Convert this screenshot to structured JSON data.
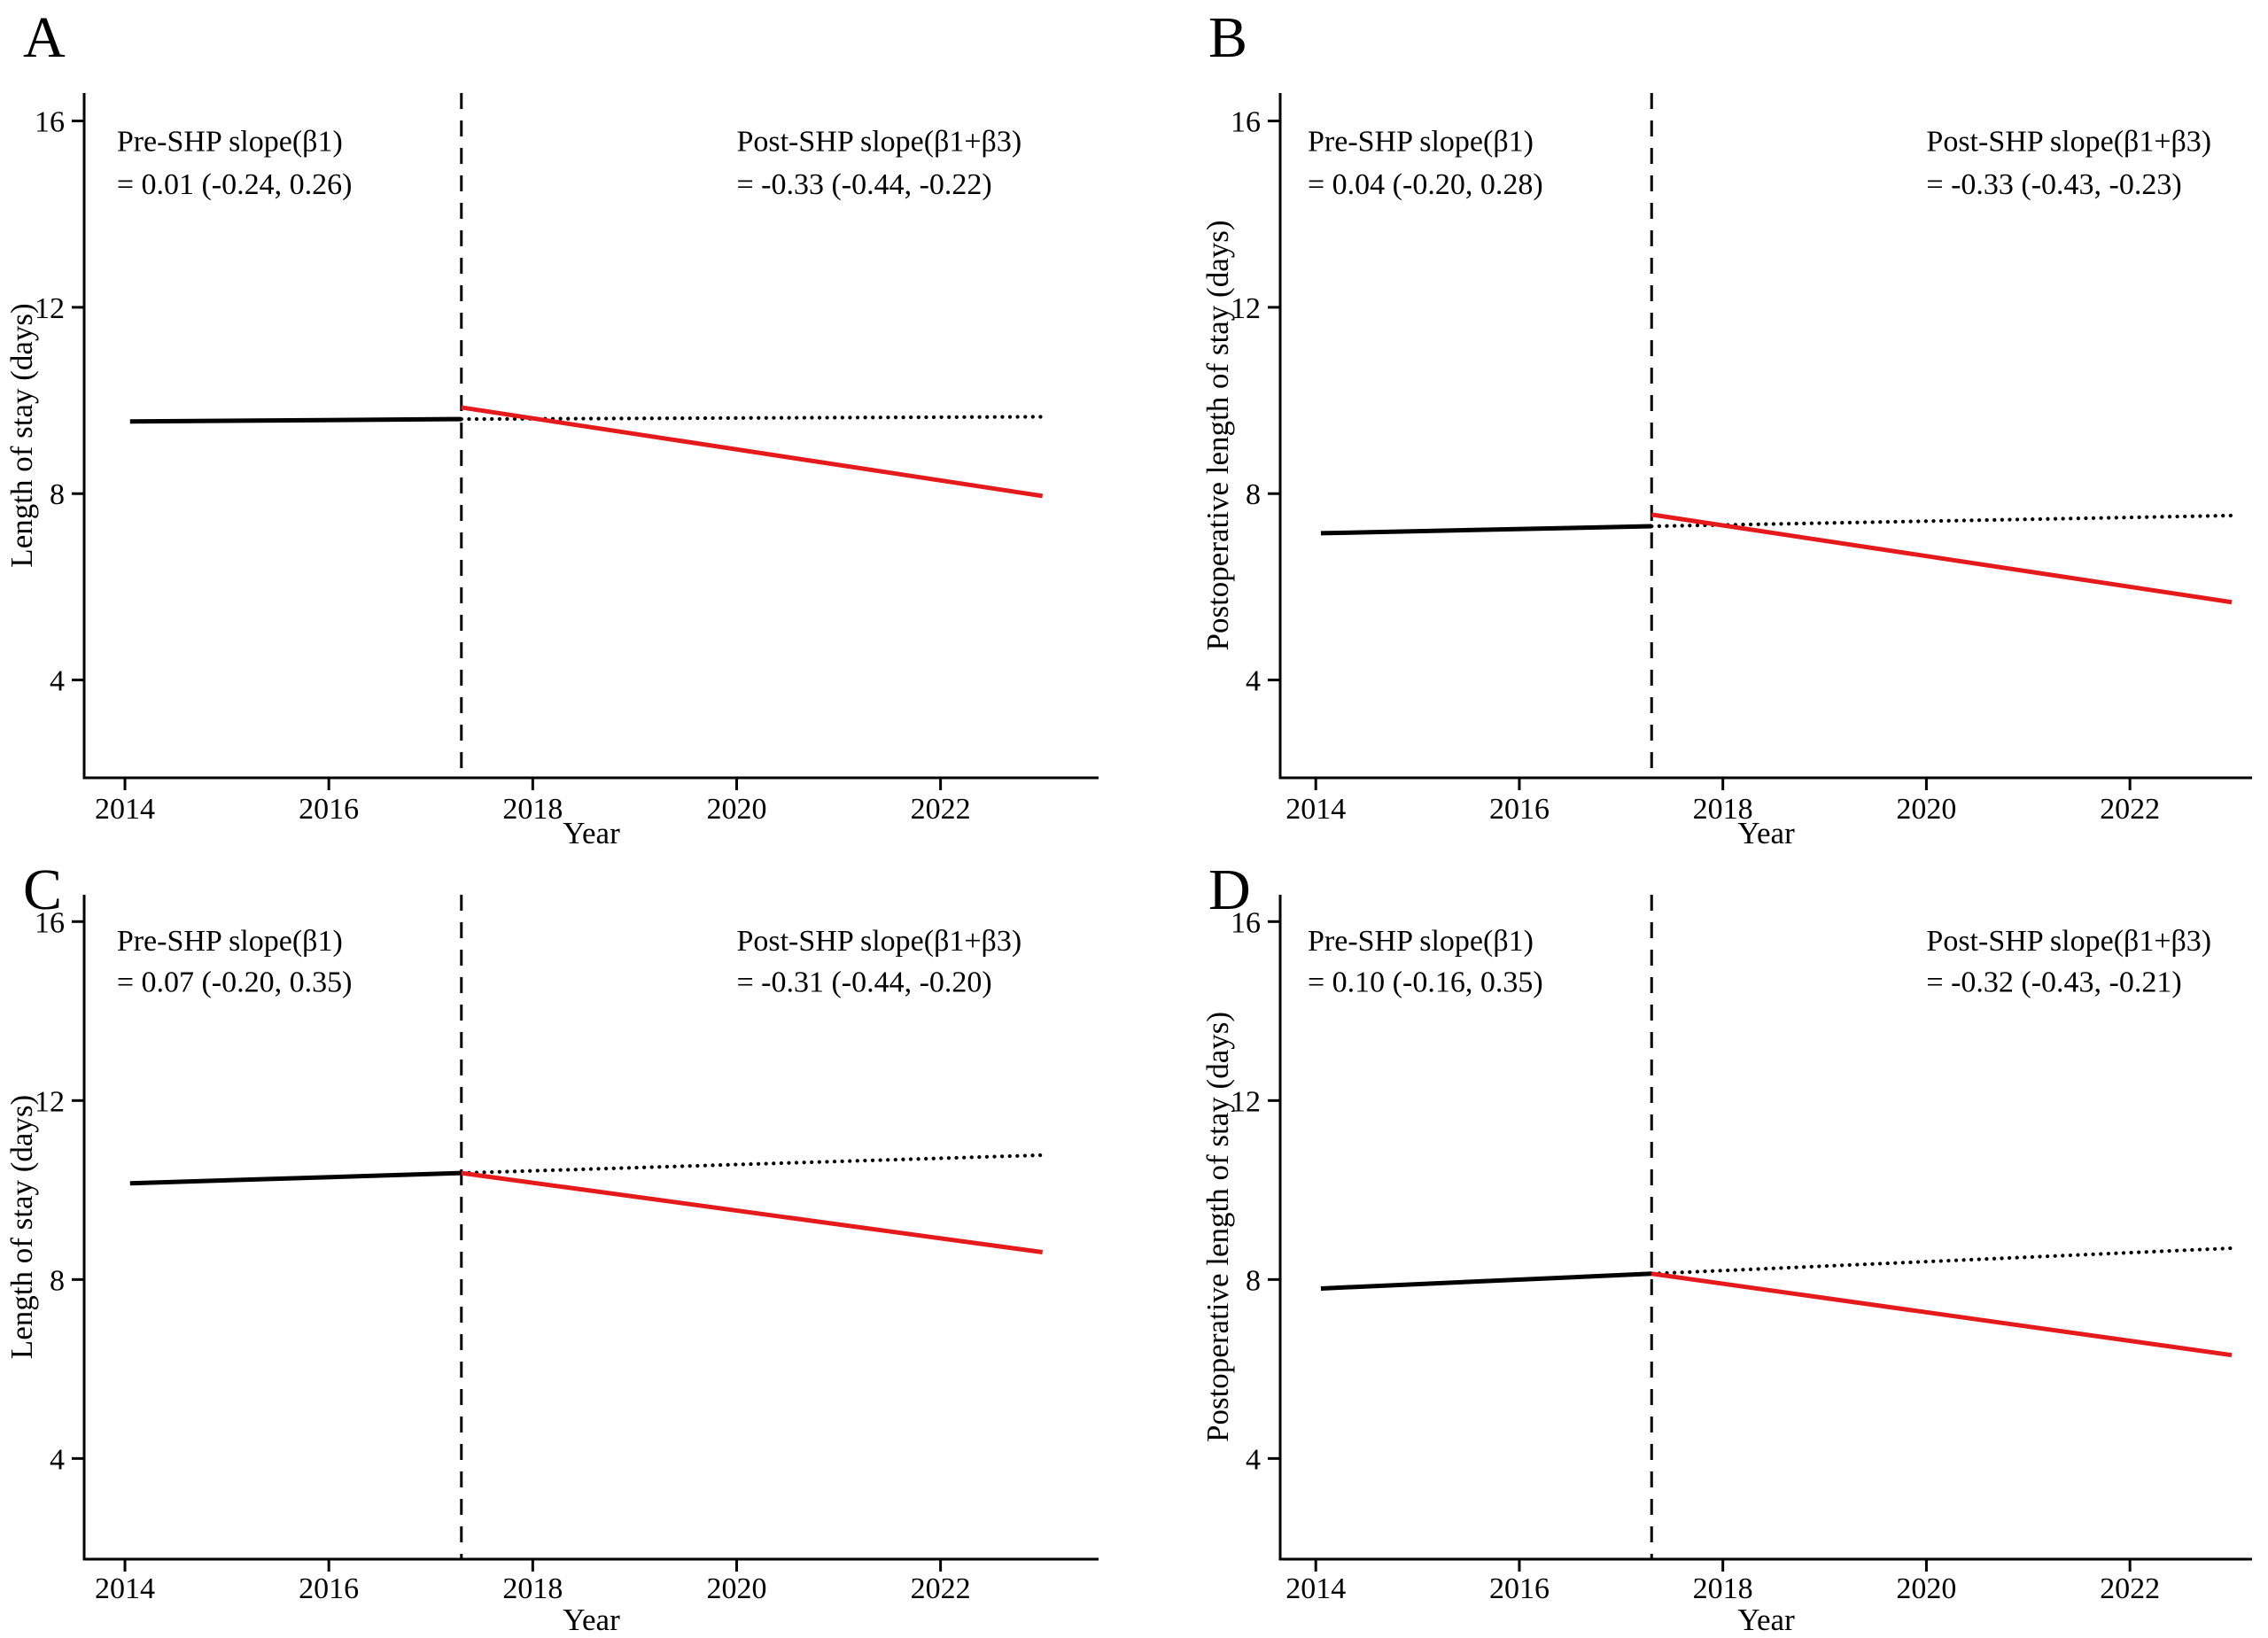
{
  "figure": {
    "background": "#ffffff",
    "description": "Interrupted time series of length of stay before and after SHP, four panels"
  },
  "colors": {
    "axis_black": "#000000",
    "trend_black": "#000000",
    "post_trend_red": "#e41a1c"
  },
  "chart_data": [
    {
      "panel": "A",
      "type": "line",
      "xlabel": "Year",
      "ylabel": "Length of stay (days)",
      "xticks": [
        2014,
        2016,
        2018,
        2020,
        2022
      ],
      "yticks": [
        4,
        8,
        12,
        16
      ],
      "xlim": [
        2013.6,
        2023.55
      ],
      "ylim": [
        1.9,
        16.6
      ],
      "intervention_x": 2017.3,
      "annotations": {
        "pre_line1": "Pre-SHP slope(β1)",
        "pre_line2": "= 0.01 (-0.24, 0.26)",
        "post_line1": "Post-SHP slope(β1+β3)",
        "post_line2": "= -0.33 (-0.44, -0.22)"
      },
      "series": [
        {
          "name": "observed-pre-trend",
          "style": "solid",
          "color": "#000000",
          "x": [
            2014.05,
            2017.3
          ],
          "y": [
            9.55,
            9.6
          ]
        },
        {
          "name": "counterfactual-trend",
          "style": "dotted",
          "color": "#000000",
          "x": [
            2017.3,
            2023.0
          ],
          "y": [
            9.6,
            9.65
          ]
        },
        {
          "name": "post-shp-trend",
          "style": "solid",
          "color": "#e41a1c",
          "x": [
            2017.3,
            2023.0
          ],
          "y": [
            9.85,
            7.95
          ]
        }
      ]
    },
    {
      "panel": "B",
      "type": "line",
      "xlabel": "Year",
      "ylabel": "Postoperative length of stay (days)",
      "xticks": [
        2014,
        2016,
        2018,
        2020,
        2022
      ],
      "yticks": [
        4,
        8,
        12,
        16
      ],
      "xlim": [
        2013.65,
        2023.2
      ],
      "ylim": [
        1.9,
        16.6
      ],
      "intervention_x": 2017.3,
      "annotations": {
        "pre_line1": "Pre-SHP slope(β1)",
        "pre_line2": "= 0.04 (-0.20, 0.28)",
        "post_line1": "Post-SHP slope(β1+β3)",
        "post_line2": "= -0.33 (-0.43, -0.23)"
      },
      "series": [
        {
          "name": "observed-pre-trend",
          "style": "solid",
          "color": "#000000",
          "x": [
            2014.05,
            2017.3
          ],
          "y": [
            7.15,
            7.3
          ]
        },
        {
          "name": "counterfactual-trend",
          "style": "dotted",
          "color": "#000000",
          "x": [
            2017.3,
            2023.0
          ],
          "y": [
            7.3,
            7.53
          ]
        },
        {
          "name": "post-shp-trend",
          "style": "solid",
          "color": "#e41a1c",
          "x": [
            2017.3,
            2023.0
          ],
          "y": [
            7.55,
            5.67
          ]
        }
      ]
    },
    {
      "panel": "C",
      "type": "line",
      "xlabel": "Year",
      "ylabel": "Length of stay (days)",
      "xticks": [
        2014,
        2016,
        2018,
        2020,
        2022
      ],
      "yticks": [
        4,
        8,
        12,
        16
      ],
      "xlim": [
        2013.6,
        2023.55
      ],
      "ylim": [
        1.75,
        16.6
      ],
      "intervention_x": 2017.3,
      "annotations": {
        "pre_line1": "Pre-SHP slope(β1)",
        "pre_line2": "= 0.07 (-0.20, 0.35)",
        "post_line1": "Post-SHP slope(β1+β3)",
        "post_line2": "= -0.31 (-0.44, -0.20)"
      },
      "series": [
        {
          "name": "observed-pre-trend",
          "style": "solid",
          "color": "#000000",
          "x": [
            2014.05,
            2017.3
          ],
          "y": [
            10.15,
            10.38
          ]
        },
        {
          "name": "counterfactual-trend",
          "style": "dotted",
          "color": "#000000",
          "x": [
            2017.3,
            2023.0
          ],
          "y": [
            10.38,
            10.78
          ]
        },
        {
          "name": "post-shp-trend",
          "style": "solid",
          "color": "#e41a1c",
          "x": [
            2017.3,
            2023.0
          ],
          "y": [
            10.38,
            8.61
          ]
        }
      ]
    },
    {
      "panel": "D",
      "type": "line",
      "xlabel": "Year",
      "ylabel": "Postoperative length of stay (days)",
      "xticks": [
        2014,
        2016,
        2018,
        2020,
        2022
      ],
      "yticks": [
        4,
        8,
        12,
        16
      ],
      "xlim": [
        2013.65,
        2023.2
      ],
      "ylim": [
        1.75,
        16.6
      ],
      "intervention_x": 2017.3,
      "annotations": {
        "pre_line1": "Pre-SHP slope(β1)",
        "pre_line2": "= 0.10 (-0.16, 0.35)",
        "post_line1": "Post-SHP slope(β1+β3)",
        "post_line2": "= -0.32 (-0.43, -0.21)"
      },
      "series": [
        {
          "name": "observed-pre-trend",
          "style": "solid",
          "color": "#000000",
          "x": [
            2014.05,
            2017.3
          ],
          "y": [
            7.8,
            8.13
          ]
        },
        {
          "name": "counterfactual-trend",
          "style": "dotted",
          "color": "#000000",
          "x": [
            2017.3,
            2023.0
          ],
          "y": [
            8.13,
            8.7
          ]
        },
        {
          "name": "post-shp-trend",
          "style": "solid",
          "color": "#e41a1c",
          "x": [
            2017.3,
            2023.0
          ],
          "y": [
            8.13,
            6.31
          ]
        }
      ]
    }
  ]
}
